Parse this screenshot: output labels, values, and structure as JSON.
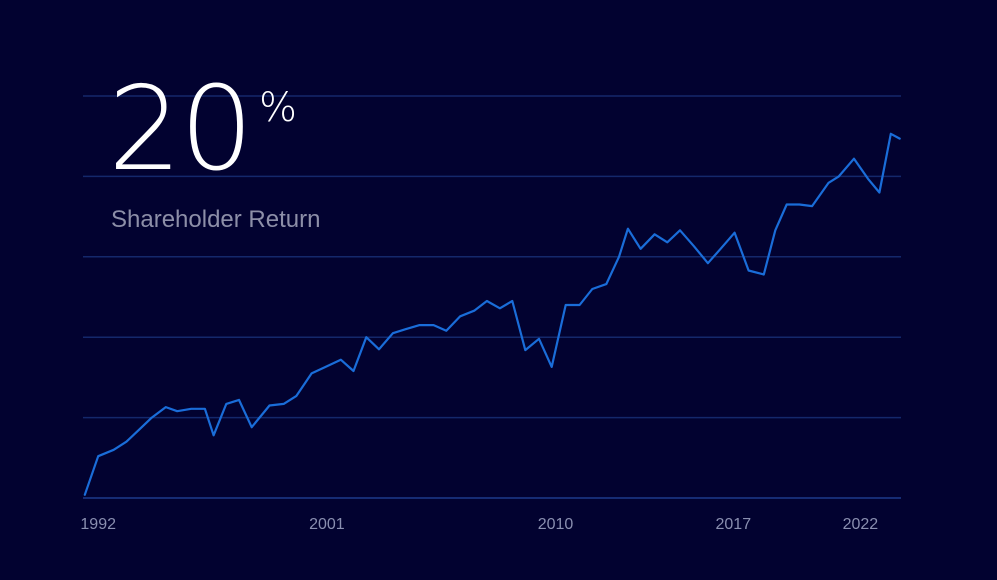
{
  "headline": {
    "value": "20",
    "unit": "%",
    "label": "Shareholder Return"
  },
  "colors": {
    "background": "#020230",
    "line": "#1a6dd9",
    "grid": "#14286b",
    "tick_text": "#8a8fb0"
  },
  "chart_data": {
    "type": "line",
    "title": "",
    "xlabel": "",
    "ylabel": "",
    "grid": true,
    "y_tick_labels_shown": false,
    "x_ticks": [
      "1992",
      "2001",
      "2010",
      "2017",
      "2022"
    ],
    "xlim": [
      1991.4,
      2023.6
    ],
    "ylim": [
      0,
      5
    ],
    "series": [
      {
        "x": [
          1991.47,
          1992.0,
          1992.61,
          1993.11,
          1993.61,
          1994.11,
          1994.66,
          1995.11,
          1995.66,
          1996.2,
          1996.54,
          1997.04,
          1997.54,
          1998.04,
          1998.74,
          1999.3,
          1999.8,
          2000.4,
          2000.95,
          2001.55,
          2002.05,
          2002.55,
          2003.05,
          2003.6,
          2004.1,
          2004.65,
          2005.2,
          2005.7,
          2006.25,
          2006.8,
          2007.3,
          2007.81,
          2008.3,
          2008.81,
          2009.35,
          2009.85,
          2010.4,
          2010.95,
          2011.45,
          2012.0,
          2012.5,
          2012.85,
          2013.35,
          2013.9,
          2014.4,
          2014.9,
          2015.45,
          2016.0,
          2016.5,
          2017.05,
          2017.6,
          2018.2,
          2018.65,
          2019.1,
          2019.6,
          2020.1,
          2020.75,
          2021.15,
          2021.75,
          2022.3,
          2022.75,
          2023.2,
          2023.55
        ],
        "y": [
          0.04,
          0.52,
          0.6,
          0.7,
          0.85,
          1.0,
          1.13,
          1.08,
          1.11,
          1.11,
          0.78,
          1.17,
          1.22,
          0.88,
          1.15,
          1.17,
          1.27,
          1.55,
          1.63,
          1.72,
          1.58,
          2.0,
          1.85,
          2.05,
          2.1,
          2.15,
          2.15,
          2.08,
          2.26,
          2.33,
          2.45,
          2.36,
          2.45,
          1.84,
          1.98,
          1.63,
          2.4,
          2.4,
          2.6,
          2.66,
          3.0,
          3.35,
          3.1,
          3.28,
          3.18,
          3.33,
          3.13,
          2.92,
          3.1,
          3.3,
          2.83,
          2.78,
          3.33,
          3.65,
          3.65,
          3.63,
          3.92,
          4.0,
          4.22,
          3.97,
          3.8,
          4.53,
          4.47
        ]
      }
    ]
  }
}
